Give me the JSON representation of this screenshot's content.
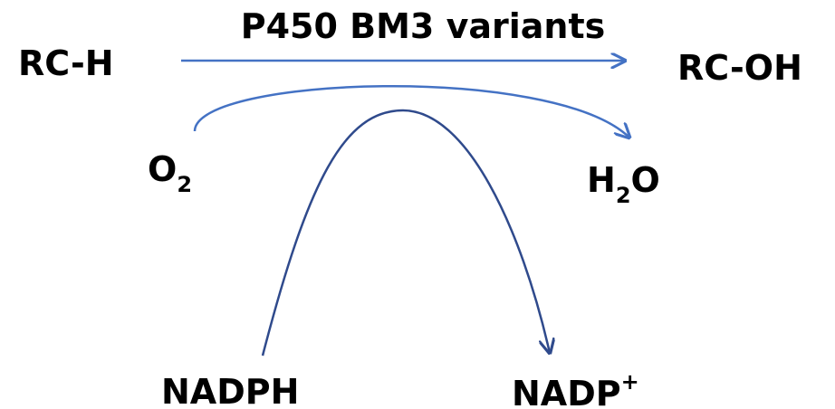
{
  "reaction": {
    "substrate": "RC-H",
    "enzyme": "P450 BM3 variants",
    "product": "RC-OH"
  },
  "cosubstrate": {
    "text": "O",
    "sub": "2"
  },
  "coproduct": {
    "text": "H",
    "sub": "2",
    "text2": "O"
  },
  "cofactor": {
    "text": "NADPH"
  },
  "cofactor_product": {
    "text": "NADP",
    "sup": "+"
  }
}
